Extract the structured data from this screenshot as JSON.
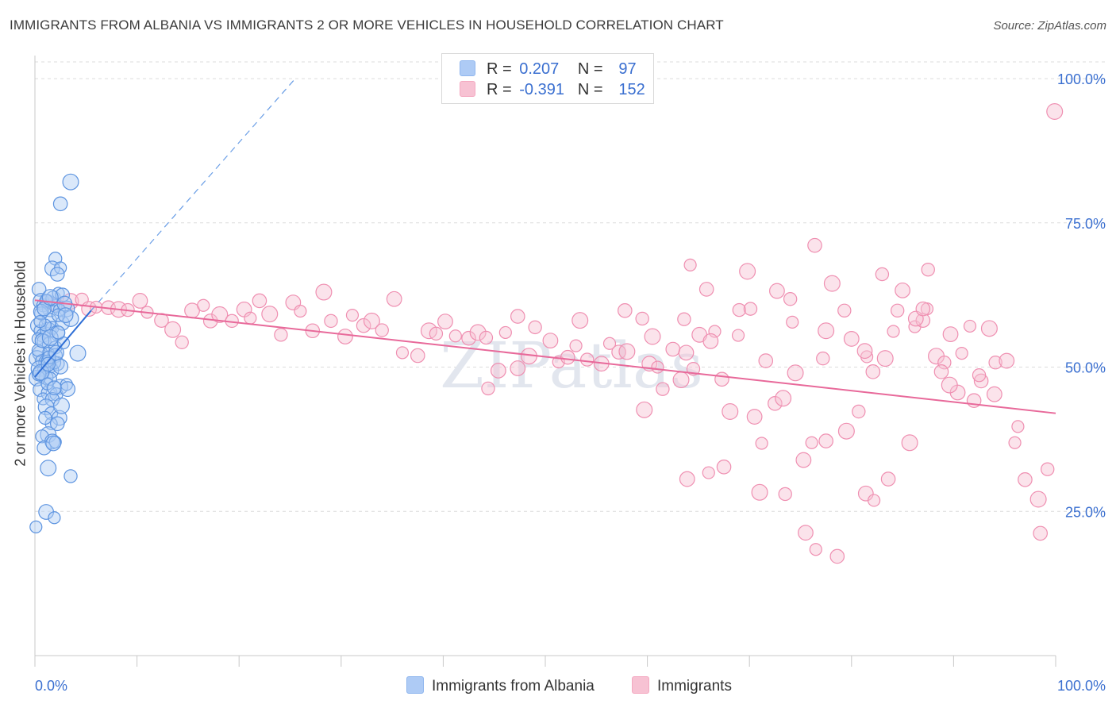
{
  "title": "IMMIGRANTS FROM ALBANIA VS IMMIGRANTS 2 OR MORE VEHICLES IN HOUSEHOLD CORRELATION CHART",
  "source": "Source: ZipAtlas.com",
  "watermark": "ZIPatlas",
  "legend_top": {
    "rows": [
      {
        "r_label": "R =",
        "r_value": "0.207",
        "n_label": "N =",
        "n_value": "97",
        "color": "#8fb6ee"
      },
      {
        "r_label": "R =",
        "r_value": "-0.391",
        "n_label": "N =",
        "n_value": "152",
        "color": "#f4a9c1"
      }
    ]
  },
  "bottom_legend": [
    {
      "label": "Immigrants from Albania",
      "color": "#aecbf5"
    },
    {
      "label": "Immigrants",
      "color": "#f7c2d3"
    }
  ],
  "chart_data": {
    "type": "scatter",
    "title": "IMMIGRANTS FROM ALBANIA VS IMMIGRANTS 2 OR MORE VEHICLES IN HOUSEHOLD CORRELATION CHART",
    "xlabel": "",
    "ylabel": "2 or more Vehicles in Household",
    "xlim": [
      0,
      100
    ],
    "ylim": [
      0,
      104
    ],
    "x_tick_labels": [
      "0.0%",
      "100.0%"
    ],
    "y_ticks": [
      25,
      50,
      75,
      100
    ],
    "y_tick_labels": [
      "25.0%",
      "50.0%",
      "75.0%",
      "100.0%"
    ],
    "grid": true,
    "legend_position": "top-center",
    "series": [
      {
        "name": "Immigrants from Albania",
        "color": "#6a9ee6",
        "points": [
          [
            0.1,
            22.3
          ],
          [
            0.4,
            63.5
          ],
          [
            0.6,
            61.4
          ],
          [
            0.8,
            60.7
          ],
          [
            0.3,
            57.2
          ],
          [
            0.5,
            56.3
          ],
          [
            1.2,
            61.4
          ],
          [
            1.5,
            60.1
          ],
          [
            2.0,
            60.6
          ],
          [
            1.8,
            61.9
          ],
          [
            2.3,
            62.8
          ],
          [
            2.7,
            62.5
          ],
          [
            3.1,
            60.1
          ],
          [
            0.6,
            59.3
          ],
          [
            1.4,
            58.1
          ],
          [
            2.4,
            59.9
          ],
          [
            0.8,
            55.5
          ],
          [
            1.3,
            56.4
          ],
          [
            1.7,
            56.8
          ],
          [
            2.2,
            55.9
          ],
          [
            0.3,
            54.9
          ],
          [
            0.9,
            54.5
          ],
          [
            1.5,
            53.9
          ],
          [
            2.0,
            53.4
          ],
          [
            0.5,
            52.4
          ],
          [
            1.3,
            52.4
          ],
          [
            2.0,
            52.0
          ],
          [
            0.2,
            51.5
          ],
          [
            0.7,
            51.1
          ],
          [
            1.1,
            50.8
          ],
          [
            1.6,
            50.1
          ],
          [
            2.2,
            50.6
          ],
          [
            0.4,
            49.7
          ],
          [
            0.9,
            49.5
          ],
          [
            1.6,
            49.4
          ],
          [
            0.6,
            48.5
          ],
          [
            1.1,
            48.2
          ],
          [
            0.2,
            48.1
          ],
          [
            1.5,
            48.0
          ],
          [
            2.5,
            46.6
          ],
          [
            3.1,
            47.0
          ],
          [
            0.5,
            46.1
          ],
          [
            1.4,
            45.5
          ],
          [
            2.1,
            45.3
          ],
          [
            3.2,
            46.2
          ],
          [
            0.8,
            44.5
          ],
          [
            1.7,
            44.4
          ],
          [
            1.1,
            43.1
          ],
          [
            1.6,
            42.0
          ],
          [
            2.4,
            41.2
          ],
          [
            1.6,
            40.2
          ],
          [
            2.2,
            40.2
          ],
          [
            1.3,
            38.3
          ],
          [
            0.7,
            38.0
          ],
          [
            1.7,
            37.1
          ],
          [
            2.0,
            37.0
          ],
          [
            0.9,
            36.0
          ],
          [
            1.3,
            32.5
          ],
          [
            3.5,
            31.1
          ],
          [
            1.1,
            24.9
          ],
          [
            1.9,
            23.9
          ],
          [
            2.5,
            78.3
          ],
          [
            3.5,
            82.1
          ],
          [
            2.0,
            68.8
          ],
          [
            1.7,
            67.1
          ],
          [
            2.5,
            67.2
          ],
          [
            2.2,
            66.1
          ],
          [
            4.2,
            52.4
          ],
          [
            1.1,
            61.5
          ],
          [
            0.6,
            59.6
          ],
          [
            1.0,
            57.3
          ],
          [
            2.7,
            57.6
          ],
          [
            3.5,
            58.4
          ],
          [
            1.9,
            50.8
          ],
          [
            2.5,
            50.1
          ],
          [
            1.2,
            51.0
          ],
          [
            0.4,
            48.8
          ],
          [
            0.6,
            49.1
          ],
          [
            1.4,
            51.7
          ],
          [
            2.1,
            52.5
          ],
          [
            2.8,
            54.2
          ],
          [
            0.9,
            60.1
          ],
          [
            1.5,
            62.1
          ],
          [
            2.3,
            59.0
          ],
          [
            2.9,
            61.0
          ],
          [
            1.2,
            47.1
          ],
          [
            1.9,
            46.4
          ],
          [
            2.6,
            43.3
          ],
          [
            1.0,
            41.2
          ],
          [
            1.8,
            36.8
          ],
          [
            0.3,
            52.9
          ],
          [
            0.7,
            54.6
          ],
          [
            1.5,
            55.1
          ],
          [
            2.3,
            56.0
          ],
          [
            3.0,
            59.0
          ],
          [
            0.5,
            57.9
          ],
          [
            1.3,
            50.5
          ]
        ]
      },
      {
        "name": "Immigrants",
        "color": "#ef7fa6",
        "points": [
          [
            1.2,
            61.5
          ],
          [
            2.1,
            60.8
          ],
          [
            3.5,
            61.4
          ],
          [
            4.6,
            61.7
          ],
          [
            5.3,
            60.1
          ],
          [
            6.0,
            60.4
          ],
          [
            7.2,
            60.3
          ],
          [
            8.2,
            60.0
          ],
          [
            9.1,
            59.9
          ],
          [
            10.3,
            61.5
          ],
          [
            11.0,
            59.5
          ],
          [
            12.4,
            58.1
          ],
          [
            13.5,
            56.5
          ],
          [
            14.4,
            54.3
          ],
          [
            15.4,
            59.8
          ],
          [
            16.5,
            60.7
          ],
          [
            17.2,
            58.0
          ],
          [
            18.1,
            59.1
          ],
          [
            19.3,
            58.0
          ],
          [
            20.5,
            60.0
          ],
          [
            21.1,
            58.5
          ],
          [
            22.0,
            61.5
          ],
          [
            23.0,
            59.2
          ],
          [
            24.1,
            55.6
          ],
          [
            25.3,
            61.2
          ],
          [
            26.0,
            59.7
          ],
          [
            27.2,
            56.3
          ],
          [
            28.3,
            63.0
          ],
          [
            29.0,
            58.0
          ],
          [
            30.4,
            55.3
          ],
          [
            31.1,
            59.0
          ],
          [
            32.2,
            57.2
          ],
          [
            33.0,
            58.0
          ],
          [
            34.0,
            56.4
          ],
          [
            35.2,
            61.8
          ],
          [
            36.0,
            52.5
          ],
          [
            37.5,
            52.0
          ],
          [
            38.6,
            56.3
          ],
          [
            39.3,
            55.8
          ],
          [
            40.2,
            57.9
          ],
          [
            41.2,
            55.4
          ],
          [
            42.5,
            55.0
          ],
          [
            43.4,
            56.0
          ],
          [
            44.2,
            55.1
          ],
          [
            45.4,
            49.4
          ],
          [
            46.1,
            56.0
          ],
          [
            47.3,
            58.8
          ],
          [
            48.4,
            51.9
          ],
          [
            49.0,
            56.9
          ],
          [
            50.5,
            54.6
          ],
          [
            51.3,
            50.9
          ],
          [
            52.2,
            51.7
          ],
          [
            53.4,
            58.1
          ],
          [
            54.1,
            51.3
          ],
          [
            55.5,
            50.6
          ],
          [
            56.3,
            54.1
          ],
          [
            57.2,
            52.6
          ],
          [
            58.0,
            52.7
          ],
          [
            59.5,
            58.4
          ],
          [
            60.2,
            50.6
          ],
          [
            61.0,
            50.0
          ],
          [
            62.5,
            53.1
          ],
          [
            63.3,
            47.8
          ],
          [
            64.5,
            49.7
          ],
          [
            65.1,
            55.6
          ],
          [
            66.6,
            56.2
          ],
          [
            67.3,
            47.9
          ],
          [
            68.1,
            42.3
          ],
          [
            69.0,
            59.9
          ],
          [
            70.5,
            41.4
          ],
          [
            71.2,
            36.8
          ],
          [
            72.5,
            43.7
          ],
          [
            73.3,
            44.6
          ],
          [
            74.0,
            61.8
          ],
          [
            75.3,
            33.9
          ],
          [
            76.1,
            36.9
          ],
          [
            77.5,
            37.2
          ],
          [
            78.1,
            64.5
          ],
          [
            79.3,
            59.8
          ],
          [
            80.0,
            54.9
          ],
          [
            81.5,
            51.8
          ],
          [
            82.1,
            49.2
          ],
          [
            83.3,
            51.5
          ],
          [
            84.5,
            59.8
          ],
          [
            85.0,
            63.3
          ],
          [
            86.2,
            57.0
          ],
          [
            87.0,
            58.1
          ],
          [
            88.3,
            51.9
          ],
          [
            89.1,
            50.8
          ],
          [
            90.4,
            45.6
          ],
          [
            91.6,
            57.1
          ],
          [
            92.0,
            44.2
          ],
          [
            93.5,
            56.7
          ],
          [
            94.1,
            50.8
          ],
          [
            95.2,
            51.1
          ],
          [
            96.0,
            36.9
          ],
          [
            97.0,
            30.5
          ],
          [
            98.3,
            27.1
          ],
          [
            99.2,
            32.3
          ],
          [
            63.9,
            30.6
          ],
          [
            66.0,
            31.7
          ],
          [
            67.5,
            32.7
          ],
          [
            71.0,
            28.3
          ],
          [
            73.5,
            28.0
          ],
          [
            75.5,
            21.3
          ],
          [
            76.5,
            18.4
          ],
          [
            78.6,
            17.2
          ],
          [
            79.5,
            38.9
          ],
          [
            80.7,
            42.3
          ],
          [
            81.4,
            28.1
          ],
          [
            82.2,
            26.9
          ],
          [
            83.6,
            30.6
          ],
          [
            85.7,
            36.9
          ],
          [
            87.5,
            66.9
          ],
          [
            89.7,
            55.7
          ],
          [
            90.8,
            52.4
          ],
          [
            92.7,
            47.6
          ],
          [
            59.7,
            42.6
          ],
          [
            61.5,
            46.2
          ],
          [
            63.8,
            52.5
          ],
          [
            64.2,
            67.7
          ],
          [
            65.8,
            63.5
          ],
          [
            69.8,
            66.6
          ],
          [
            70.1,
            60.1
          ],
          [
            72.7,
            63.2
          ],
          [
            74.2,
            57.8
          ],
          [
            76.4,
            71.1
          ],
          [
            77.5,
            56.3
          ],
          [
            83.0,
            66.1
          ],
          [
            86.3,
            58.4
          ],
          [
            87.4,
            60.1
          ],
          [
            88.8,
            49.2
          ],
          [
            89.6,
            46.9
          ],
          [
            92.5,
            48.6
          ],
          [
            94.0,
            45.3
          ],
          [
            96.3,
            39.7
          ],
          [
            98.5,
            21.2
          ],
          [
            99.9,
            94.3
          ],
          [
            44.4,
            46.3
          ],
          [
            47.3,
            49.8
          ],
          [
            53.0,
            53.7
          ],
          [
            57.8,
            59.8
          ],
          [
            60.5,
            55.3
          ],
          [
            63.6,
            58.3
          ],
          [
            66.2,
            54.5
          ],
          [
            68.9,
            55.5
          ],
          [
            71.6,
            51.1
          ],
          [
            74.5,
            49.0
          ],
          [
            77.2,
            51.5
          ],
          [
            81.3,
            52.8
          ],
          [
            84.1,
            56.2
          ],
          [
            87.0,
            60.1
          ]
        ]
      }
    ],
    "trend_lines": [
      {
        "series": "Immigrants from Albania",
        "x": [
          0,
          5.5
        ],
        "y": [
          48.3,
          59.8
        ],
        "extended_dashed_to": [
          25.5,
          100
        ]
      },
      {
        "series": "Immigrants",
        "x": [
          0,
          100
        ],
        "y": [
          61.6,
          42.0
        ]
      }
    ]
  }
}
